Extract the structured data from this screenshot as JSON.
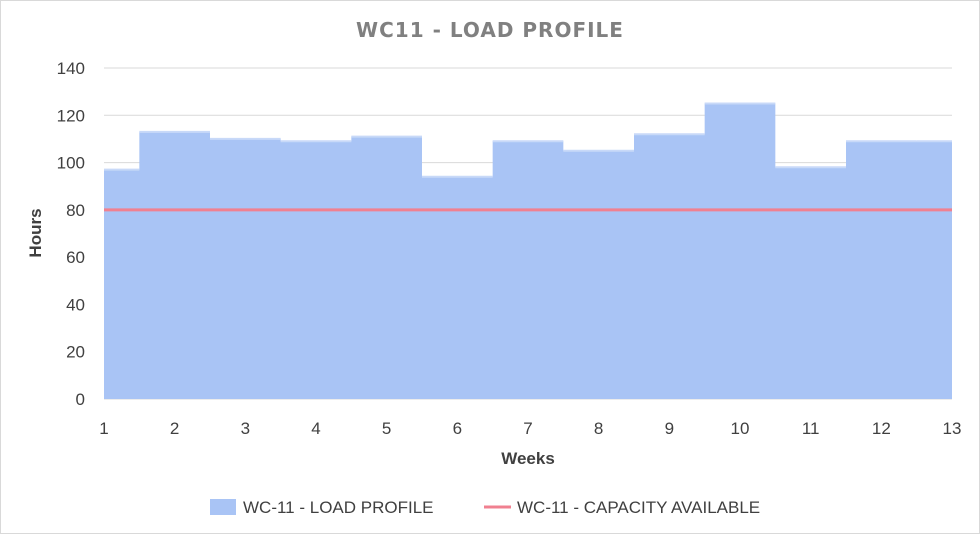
{
  "chart_data": {
    "type": "area",
    "title": "WC11 - LOAD PROFILE",
    "xlabel": "Weeks",
    "ylabel": "Hours",
    "x": [
      1,
      2,
      3,
      4,
      5,
      6,
      7,
      8,
      9,
      10,
      11,
      12,
      13
    ],
    "ylim": [
      0,
      140
    ],
    "yticks": [
      0,
      20,
      40,
      60,
      80,
      100,
      120,
      140
    ],
    "xlim": [
      1,
      13
    ],
    "grid": true,
    "legend_position": "bottom",
    "series": [
      {
        "name": "WC-11 - LOAD PROFILE",
        "type": "area",
        "step": true,
        "color": "#a9c4f5",
        "values": [
          97,
          113,
          110,
          109,
          111,
          94,
          109,
          105,
          112,
          125,
          98,
          109,
          109
        ]
      },
      {
        "name": "WC-11 - CAPACITY AVAILABLE",
        "type": "line",
        "color": "#f08090",
        "values": [
          80,
          80,
          80,
          80,
          80,
          80,
          80,
          80,
          80,
          80,
          80,
          80,
          80
        ]
      }
    ]
  }
}
